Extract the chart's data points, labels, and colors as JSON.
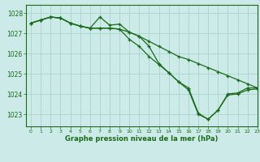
{
  "title": "Graphe pression niveau de la mer (hPa)",
  "background_color": "#cceae8",
  "grid_color": "#aad4cc",
  "line_color": "#1a6b1a",
  "xlim": [
    -0.5,
    23
  ],
  "ylim": [
    1022.4,
    1028.4
  ],
  "yticks": [
    1023,
    1024,
    1025,
    1026,
    1027,
    1028
  ],
  "xticks": [
    0,
    1,
    2,
    3,
    4,
    5,
    6,
    7,
    8,
    9,
    10,
    11,
    12,
    13,
    14,
    15,
    16,
    17,
    18,
    19,
    20,
    21,
    22,
    23
  ],
  "s1": [
    1027.5,
    1027.65,
    1027.8,
    1027.75,
    1027.5,
    1027.35,
    1027.25,
    1027.8,
    1027.4,
    1027.45,
    1027.05,
    1026.85,
    1026.35,
    1025.5,
    1025.05,
    1024.6,
    1024.2,
    1023.0,
    1022.75,
    1023.2,
    1024.0,
    1024.05,
    1024.3,
    1024.3
  ],
  "s2": [
    1027.5,
    1027.65,
    1027.8,
    1027.75,
    1027.5,
    1027.35,
    1027.25,
    1027.25,
    1027.25,
    1027.2,
    1027.05,
    1026.85,
    1026.6,
    1026.35,
    1026.1,
    1025.85,
    1025.7,
    1025.5,
    1025.3,
    1025.1,
    1024.9,
    1024.7,
    1024.5,
    1024.3
  ],
  "s3": [
    1027.5,
    1027.65,
    1027.8,
    1027.75,
    1027.5,
    1027.35,
    1027.25,
    1027.25,
    1027.25,
    1027.2,
    1026.7,
    1026.35,
    1025.85,
    1025.45,
    1025.05,
    1024.6,
    1024.3,
    1023.05,
    1022.75,
    1023.2,
    1023.95,
    1024.0,
    1024.2,
    1024.25
  ]
}
